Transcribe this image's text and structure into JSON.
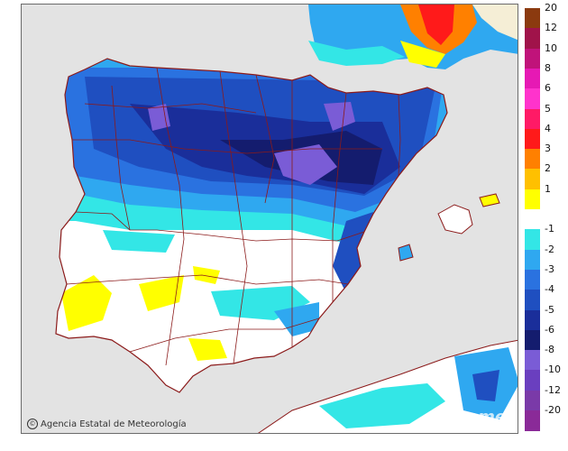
{
  "credit": {
    "icon": "copyright-icon",
    "text": "Agencia Estatal de Meteorología"
  },
  "watermark": "gemer",
  "legend": {
    "bins": [
      {
        "label": "20",
        "color": "#8b3a0f"
      },
      {
        "label": "12",
        "color": "#a0134a"
      },
      {
        "label": "10",
        "color": "#c0137a"
      },
      {
        "label": "8",
        "color": "#e619b4"
      },
      {
        "label": "6",
        "color": "#ff33cc"
      },
      {
        "label": "5",
        "color": "#ff1a66"
      },
      {
        "label": "4",
        "color": "#ff1a1a"
      },
      {
        "label": "3",
        "color": "#ff8000"
      },
      {
        "label": "2",
        "color": "#ffc000"
      },
      {
        "label": "1",
        "color": "#ffff00"
      },
      {
        "label": "",
        "color": "#ffffff"
      },
      {
        "label": "-1",
        "color": "#33e6e6"
      },
      {
        "label": "-2",
        "color": "#2fa8f0"
      },
      {
        "label": "-3",
        "color": "#2a72e0"
      },
      {
        "label": "-4",
        "color": "#1f4fc0"
      },
      {
        "label": "-5",
        "color": "#1a2e9a"
      },
      {
        "label": "-6",
        "color": "#141c6e"
      },
      {
        "label": "-8",
        "color": "#7a5cd6"
      },
      {
        "label": "-10",
        "color": "#6a3fbf"
      },
      {
        "label": "-12",
        "color": "#7a3aa8"
      },
      {
        "label": "-20",
        "color": "#8a2a98"
      }
    ]
  },
  "colors": {
    "sea": "#e3e3e3",
    "land_outside": "#f5eed6",
    "border": "#8b1a1a"
  }
}
